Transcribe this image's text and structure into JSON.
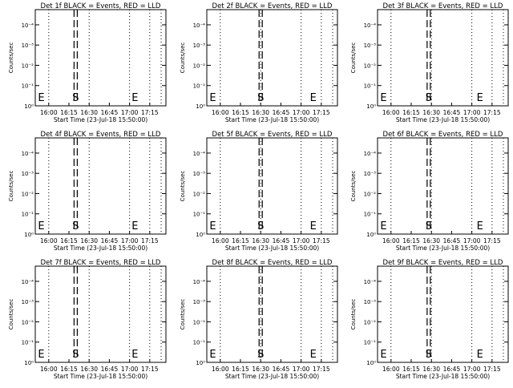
{
  "chart_data": [
    {
      "type": "line",
      "title": "Det 1f BLACK = Events, RED = LLD",
      "xlabel": "Start Time (23-Jul-18 15:50:00)",
      "ylabel": "Counts/sec",
      "x_ticks": [
        "16:00",
        "16:15",
        "16:30",
        "16:45",
        "17:00",
        "17:15"
      ],
      "y_ticks": [
        "10⁰",
        "10⁻¹",
        "10⁻²",
        "10⁻³",
        "10⁻⁴"
      ],
      "markers": [
        {
          "label": "E",
          "time": "15:52"
        },
        {
          "label": "S",
          "time": "16:20"
        },
        {
          "label": "E",
          "time": "17:04"
        }
      ]
    },
    {
      "type": "line",
      "title": "Det 2f BLACK = Events, RED = LLD",
      "xlabel": "Start Time (23-Jul-18 15:50:00)",
      "ylabel": "Counts/sec",
      "x_ticks": [
        "16:00",
        "16:15",
        "16:30",
        "16:45",
        "17:00",
        "17:15"
      ],
      "y_ticks": [
        "10⁰",
        "10⁻¹",
        "10⁻²",
        "10⁻³",
        "10⁻⁴"
      ],
      "markers": [
        {
          "label": "E",
          "time": "15:52"
        },
        {
          "label": "S",
          "time": "16:30"
        },
        {
          "label": "E",
          "time": "17:09"
        }
      ]
    },
    {
      "type": "line",
      "title": "Det 3f BLACK = Events, RED = LLD",
      "xlabel": "Start Time (23-Jul-18 15:50:00)",
      "ylabel": "Counts/sec",
      "x_ticks": [
        "16:00",
        "16:15",
        "16:30",
        "16:45",
        "17:00",
        "17:15"
      ],
      "y_ticks": [
        "10⁰",
        "10⁻¹",
        "10⁻²",
        "10⁻³",
        "10⁻⁴"
      ],
      "markers": [
        {
          "label": "E",
          "time": "15:52"
        },
        {
          "label": "S",
          "time": "16:28"
        },
        {
          "label": "E",
          "time": "17:06"
        }
      ]
    },
    {
      "type": "line",
      "title": "Det 4f BLACK = Events, RED = LLD",
      "xlabel": "Start Time (23-Jul-18 15:50:00)",
      "ylabel": "Counts/sec",
      "x_ticks": [
        "16:00",
        "16:15",
        "16:30",
        "16:45",
        "17:00",
        "17:15"
      ],
      "y_ticks": [
        "10⁰",
        "10⁻¹",
        "10⁻²",
        "10⁻³",
        "10⁻⁴"
      ],
      "markers": [
        {
          "label": "E",
          "time": "15:52"
        },
        {
          "label": "S",
          "time": "16:20"
        },
        {
          "label": "E",
          "time": "17:04"
        }
      ]
    },
    {
      "type": "line",
      "title": "Det 5f BLACK = Events, RED = LLD",
      "xlabel": "Start Time (23-Jul-18 15:50:00)",
      "ylabel": "Counts/sec",
      "x_ticks": [
        "16:00",
        "16:15",
        "16:30",
        "16:45",
        "17:00",
        "17:15"
      ],
      "y_ticks": [
        "10⁰",
        "10⁻¹",
        "10⁻²",
        "10⁻³",
        "10⁻⁴"
      ],
      "markers": [
        {
          "label": "E",
          "time": "15:52"
        },
        {
          "label": "S",
          "time": "16:30"
        },
        {
          "label": "E",
          "time": "17:09"
        }
      ]
    },
    {
      "type": "line",
      "title": "Det 6f BLACK = Events, RED = LLD",
      "xlabel": "Start Time (23-Jul-18 15:50:00)",
      "ylabel": "Counts/sec",
      "x_ticks": [
        "16:00",
        "16:15",
        "16:30",
        "16:45",
        "17:00",
        "17:15"
      ],
      "y_ticks": [
        "10⁰",
        "10⁻¹",
        "10⁻²",
        "10⁻³",
        "10⁻⁴"
      ],
      "markers": [
        {
          "label": "E",
          "time": "15:52"
        },
        {
          "label": "S",
          "time": "16:28"
        },
        {
          "label": "E",
          "time": "17:06"
        }
      ]
    },
    {
      "type": "line",
      "title": "Det 7f BLACK = Events, RED = LLD",
      "xlabel": "Start Time (23-Jul-18 15:50:00)",
      "ylabel": "Counts/sec",
      "x_ticks": [
        "16:00",
        "16:15",
        "16:30",
        "16:45",
        "17:00",
        "17:15"
      ],
      "y_ticks": [
        "10⁰",
        "10⁻¹",
        "10⁻²",
        "10⁻³",
        "10⁻⁴"
      ],
      "markers": [
        {
          "label": "E",
          "time": "15:52"
        },
        {
          "label": "S",
          "time": "16:20"
        },
        {
          "label": "E",
          "time": "17:04"
        }
      ]
    },
    {
      "type": "line",
      "title": "Det 8f BLACK = Events, RED = LLD",
      "xlabel": "Start Time (23-Jul-18 15:50:00)",
      "ylabel": "Counts/sec",
      "x_ticks": [
        "16:00",
        "16:15",
        "16:30",
        "16:45",
        "17:00",
        "17:15"
      ],
      "y_ticks": [
        "10⁰",
        "10⁻¹",
        "10⁻²",
        "10⁻³",
        "10⁻⁴"
      ],
      "markers": [
        {
          "label": "E",
          "time": "15:52"
        },
        {
          "label": "S",
          "time": "16:30"
        },
        {
          "label": "E",
          "time": "17:09"
        }
      ]
    },
    {
      "type": "line",
      "title": "Det 9f BLACK = Events, RED = LLD",
      "xlabel": "Start Time (23-Jul-18 15:50:00)",
      "ylabel": "Counts/sec",
      "x_ticks": [
        "16:00",
        "16:15",
        "16:30",
        "16:45",
        "17:00",
        "17:15"
      ],
      "y_ticks": [
        "10⁰",
        "10⁻¹",
        "10⁻²",
        "10⁻³",
        "10⁻⁴"
      ],
      "markers": [
        {
          "label": "E",
          "time": "15:52"
        },
        {
          "label": "S",
          "time": "16:28"
        },
        {
          "label": "E",
          "time": "17:06"
        }
      ]
    }
  ]
}
